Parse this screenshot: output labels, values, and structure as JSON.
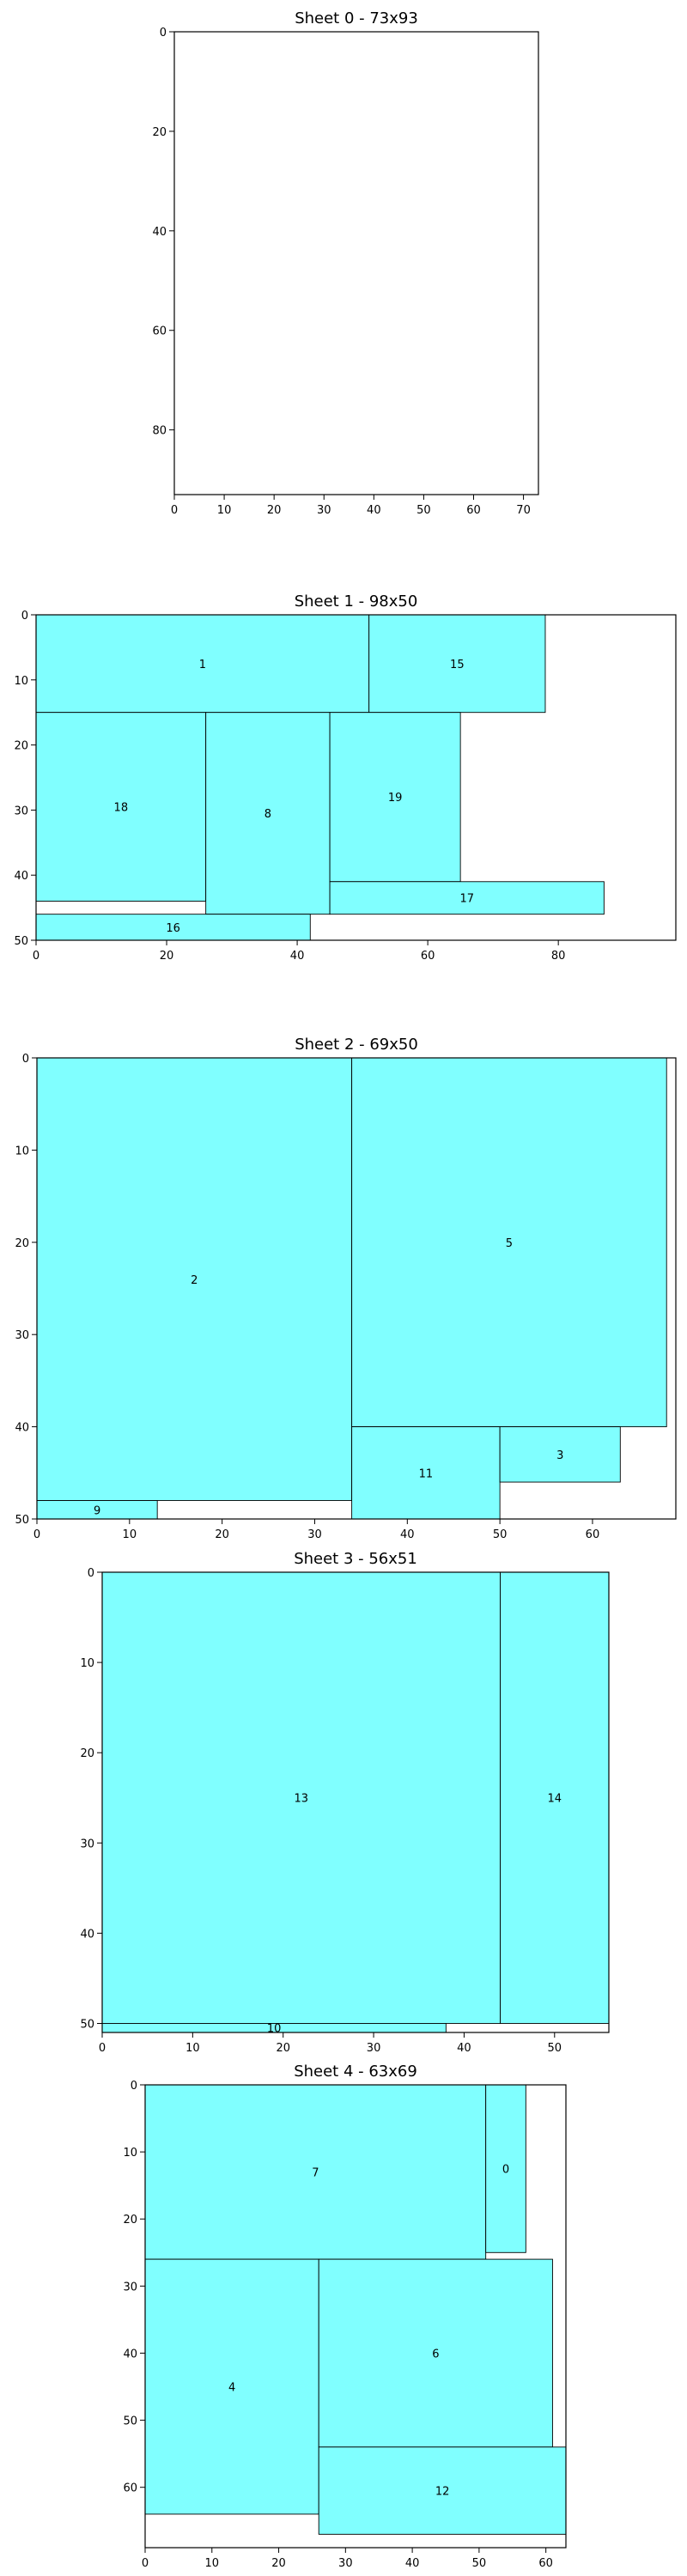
{
  "chart_data": [
    {
      "type": "rectangle-packing",
      "title": "Sheet 0 - 73x93",
      "sheet": {
        "width": 73,
        "height": 93
      },
      "xlim": [
        0,
        73
      ],
      "ylim": [
        93,
        0
      ],
      "xticks": [
        0,
        10,
        20,
        30,
        40,
        50,
        60,
        70
      ],
      "yticks": [
        0,
        20,
        40,
        60,
        80
      ],
      "rects": []
    },
    {
      "type": "rectangle-packing",
      "title": "Sheet 1 - 98x50",
      "sheet": {
        "width": 98,
        "height": 50
      },
      "xlim": [
        0,
        98
      ],
      "ylim": [
        50,
        0
      ],
      "xticks": [
        0,
        20,
        40,
        60,
        80
      ],
      "yticks": [
        0,
        10,
        20,
        30,
        40,
        50
      ],
      "rects": [
        {
          "label": "1",
          "x": 0,
          "y": 0,
          "w": 51,
          "h": 15
        },
        {
          "label": "15",
          "x": 51,
          "y": 0,
          "w": 27,
          "h": 15
        },
        {
          "label": "18",
          "x": 0,
          "y": 15,
          "w": 26,
          "h": 29
        },
        {
          "label": "8",
          "x": 26,
          "y": 15,
          "w": 19,
          "h": 31
        },
        {
          "label": "19",
          "x": 45,
          "y": 15,
          "w": 20,
          "h": 26
        },
        {
          "label": "17",
          "x": 45,
          "y": 41,
          "w": 42,
          "h": 5
        },
        {
          "label": "16",
          "x": 0,
          "y": 46,
          "w": 42,
          "h": 4
        }
      ]
    },
    {
      "type": "rectangle-packing",
      "title": "Sheet 2 - 69x50",
      "sheet": {
        "width": 69,
        "height": 50
      },
      "xlim": [
        0,
        69
      ],
      "ylim": [
        50,
        0
      ],
      "xticks": [
        0,
        10,
        20,
        30,
        40,
        50,
        60
      ],
      "yticks": [
        0,
        10,
        20,
        30,
        40,
        50
      ],
      "rects": [
        {
          "label": "2",
          "x": 0,
          "y": 0,
          "w": 34,
          "h": 48
        },
        {
          "label": "5",
          "x": 34,
          "y": 0,
          "w": 34,
          "h": 40
        },
        {
          "label": "11",
          "x": 34,
          "y": 40,
          "w": 16,
          "h": 10
        },
        {
          "label": "3",
          "x": 50,
          "y": 40,
          "w": 13,
          "h": 6
        },
        {
          "label": "9",
          "x": 0,
          "y": 48,
          "w": 13,
          "h": 2
        }
      ]
    },
    {
      "type": "rectangle-packing",
      "title": "Sheet 3 - 56x51",
      "sheet": {
        "width": 56,
        "height": 51
      },
      "xlim": [
        0,
        56
      ],
      "ylim": [
        51,
        0
      ],
      "xticks": [
        0,
        10,
        20,
        30,
        40,
        50
      ],
      "yticks": [
        0,
        10,
        20,
        30,
        40,
        50
      ],
      "rects": [
        {
          "label": "13",
          "x": 0,
          "y": 0,
          "w": 44,
          "h": 50
        },
        {
          "label": "14",
          "x": 44,
          "y": 0,
          "w": 12,
          "h": 50
        },
        {
          "label": "10",
          "x": 0,
          "y": 50,
          "w": 38,
          "h": 1
        }
      ]
    },
    {
      "type": "rectangle-packing",
      "title": "Sheet 4 - 63x69",
      "sheet": {
        "width": 63,
        "height": 69
      },
      "xlim": [
        0,
        63
      ],
      "ylim": [
        69,
        0
      ],
      "xticks": [
        0,
        10,
        20,
        30,
        40,
        50,
        60
      ],
      "yticks": [
        0,
        10,
        20,
        30,
        40,
        50,
        60
      ],
      "rects": [
        {
          "label": "7",
          "x": 0,
          "y": 0,
          "w": 51,
          "h": 26
        },
        {
          "label": "0",
          "x": 51,
          "y": 0,
          "w": 6,
          "h": 25
        },
        {
          "label": "4",
          "x": 0,
          "y": 26,
          "w": 26,
          "h": 38
        },
        {
          "label": "6",
          "x": 26,
          "y": 26,
          "w": 35,
          "h": 28
        },
        {
          "label": "12",
          "x": 26,
          "y": 54,
          "w": 37,
          "h": 13
        }
      ]
    }
  ],
  "colors": {
    "fill": "#80ffff",
    "edge": "#000000",
    "background": "#ffffff"
  }
}
